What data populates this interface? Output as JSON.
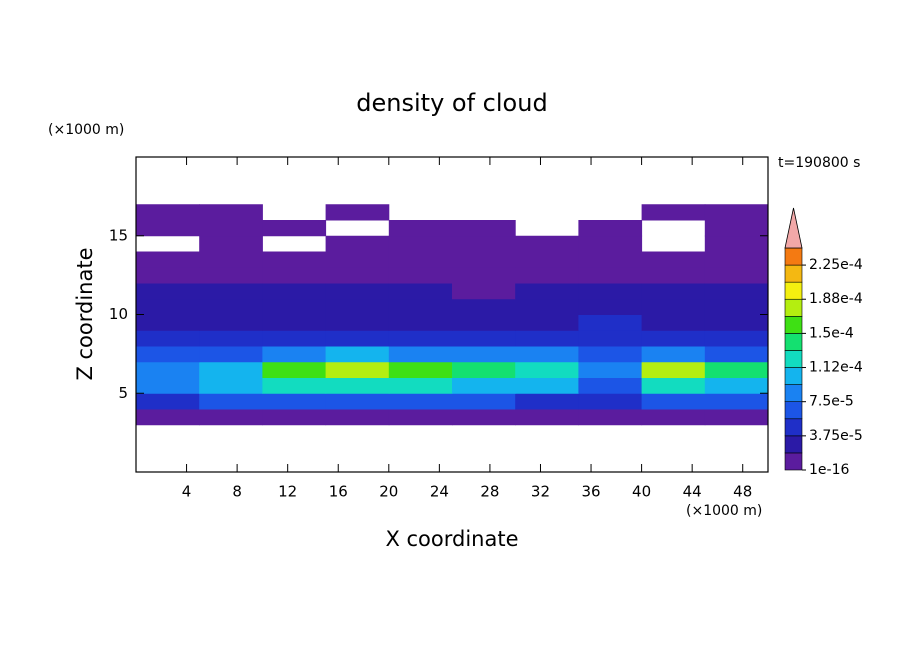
{
  "chart_data": {
    "type": "contour",
    "title": "density of cloud",
    "x_label": "X coordinate",
    "y_label": "Z coordinate",
    "x_unit": "(×1000 m)",
    "y_unit": "(×1000 m)",
    "annotation": "t=190800 s",
    "xlim": [
      0,
      50
    ],
    "ylim": [
      0,
      20
    ],
    "xticks": [
      4,
      8,
      12,
      16,
      20,
      24,
      28,
      32,
      36,
      40,
      44,
      48
    ],
    "yticks": [
      5,
      10,
      15
    ],
    "field": {
      "x_edges": [
        0,
        5,
        10,
        15,
        20,
        25,
        30,
        35,
        40,
        45,
        50
      ],
      "z_edges": [
        0,
        1,
        2,
        3,
        4,
        5,
        6,
        7,
        8,
        9,
        10,
        11,
        12,
        13,
        14,
        15,
        16,
        17,
        18,
        19,
        20
      ],
      "values": [
        [
          null,
          null,
          null,
          null,
          null,
          null,
          null,
          null,
          null,
          null
        ],
        [
          null,
          null,
          null,
          null,
          null,
          null,
          null,
          null,
          null,
          null
        ],
        [
          null,
          null,
          null,
          null,
          null,
          null,
          null,
          null,
          null,
          null
        ],
        [
          1e-05,
          1e-05,
          1e-05,
          1e-05,
          1e-05,
          1e-05,
          1e-05,
          1e-05,
          1e-05,
          1e-05
        ],
        [
          5e-05,
          6e-05,
          6e-05,
          6e-05,
          6e-05,
          6e-05,
          5e-05,
          4e-05,
          6e-05,
          6e-05
        ],
        [
          9e-05,
          0.0001,
          0.00012,
          0.000125,
          0.00012,
          0.00011,
          0.0001,
          7e-05,
          0.000115,
          0.00011
        ],
        [
          8e-05,
          0.00011,
          0.00016,
          0.00017,
          0.00016,
          0.00014,
          0.00013,
          9e-05,
          0.000175,
          0.00014
        ],
        [
          6e-05,
          7e-05,
          9e-05,
          0.0001,
          9e-05,
          8e-05,
          8e-05,
          7e-05,
          9e-05,
          7e-05
        ],
        [
          5e-05,
          4.5e-05,
          5e-05,
          5e-05,
          5e-05,
          4.5e-05,
          5e-05,
          5.5e-05,
          5e-05,
          4.5e-05
        ],
        [
          3.5e-05,
          3e-05,
          3.5e-05,
          3.5e-05,
          3.5e-05,
          3e-05,
          3.5e-05,
          4e-05,
          3.5e-05,
          3e-05
        ],
        [
          2.5e-05,
          2.5e-05,
          2e-05,
          2.5e-05,
          2.5e-05,
          2.5e-05,
          2.5e-05,
          3e-05,
          2.5e-05,
          2.5e-05
        ],
        [
          2e-05,
          2e-05,
          2e-05,
          2e-05,
          2e-05,
          1.5e-05,
          2e-05,
          2e-05,
          2e-05,
          2e-05
        ],
        [
          1e-05,
          1e-05,
          1e-05,
          1e-05,
          1e-05,
          1e-05,
          1e-05,
          1e-05,
          1e-05,
          1e-05
        ],
        [
          8e-06,
          8e-06,
          8e-06,
          8e-06,
          8e-06,
          8e-06,
          8e-06,
          8e-06,
          8e-06,
          8e-06
        ],
        [
          null,
          5e-06,
          null,
          5e-06,
          5e-06,
          5e-06,
          5e-06,
          5e-06,
          null,
          5e-06
        ],
        [
          5e-06,
          5e-06,
          5e-06,
          null,
          5e-06,
          5e-06,
          null,
          5e-06,
          null,
          5e-06
        ],
        [
          5e-06,
          5e-06,
          null,
          5e-06,
          null,
          null,
          null,
          null,
          5e-06,
          5e-06
        ],
        [
          null,
          null,
          null,
          null,
          null,
          null,
          null,
          null,
          null,
          null
        ],
        [
          null,
          null,
          null,
          null,
          null,
          null,
          null,
          null,
          null,
          null
        ],
        [
          null,
          null,
          null,
          null,
          null,
          null,
          null,
          null,
          null,
          null
        ]
      ]
    },
    "colorbar": {
      "levels": [
        1e-16,
        1.875e-05,
        3.75e-05,
        5.625e-05,
        7.5e-05,
        9.375e-05,
        0.0001125,
        0.00013125,
        0.00015,
        0.00016875,
        0.0001875,
        0.00020625,
        0.000225,
        0.00024375
      ],
      "colors": [
        "#5b1c9e",
        "#2b1aa6",
        "#1f2fc8",
        "#1c55e6",
        "#1a82f2",
        "#14b4ee",
        "#12dcc0",
        "#14e070",
        "#3ee014",
        "#b4ee10",
        "#f4f010",
        "#f4b812",
        "#f47a12",
        "#e62a18"
      ],
      "extend_color": "#f2a8a8",
      "ticks": [
        {
          "value": 1e-16,
          "label": "1e-16"
        },
        {
          "value": 3.75e-05,
          "label": "3.75e-5"
        },
        {
          "value": 7.5e-05,
          "label": "7.5e-5"
        },
        {
          "value": 0.0001125,
          "label": "1.12e-4"
        },
        {
          "value": 0.00015,
          "label": "1.5e-4"
        },
        {
          "value": 0.0001875,
          "label": "1.88e-4"
        },
        {
          "value": 0.000225,
          "label": "2.25e-4"
        }
      ]
    }
  }
}
